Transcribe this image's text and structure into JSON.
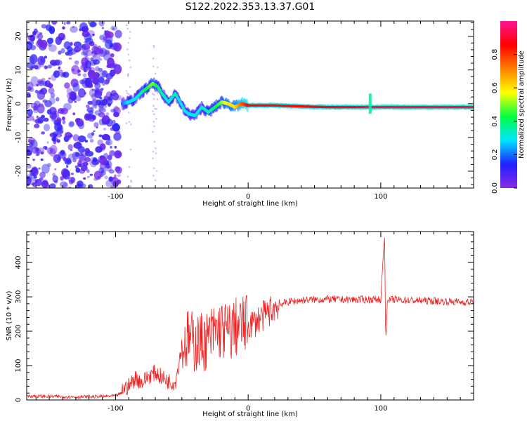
{
  "title": "S122.2022.353.13.37.G01",
  "chart_data": [
    {
      "type": "heatmap",
      "xlabel": "Height of straight line (km)",
      "ylabel": "Frequency (Hz)",
      "xlim": [
        -167,
        170
      ],
      "ylim": [
        -25,
        24.5
      ],
      "xticks": [
        -100,
        0,
        100
      ],
      "yticks": [
        -20,
        -10,
        0,
        10,
        20
      ],
      "colorbar": {
        "label": "Normalized spectral amplitude",
        "range": [
          0,
          1
        ],
        "ticks": [
          0.0,
          0.2,
          0.4,
          0.6,
          0.8
        ],
        "colormap": [
          "#8a2be2",
          "#1f1fff",
          "#00e5ff",
          "#00ff40",
          "#ffff00",
          "#ff7f00",
          "#ff0000",
          "#ff1493"
        ]
      },
      "ridge": {
        "x": [
          -95,
          -90,
          -85,
          -80,
          -75,
          -72,
          -68,
          -65,
          -60,
          -55,
          -52,
          -48,
          -45,
          -40,
          -35,
          -30,
          -25,
          -20,
          -15,
          -10,
          -5,
          0,
          10,
          20,
          40,
          60,
          80,
          90,
          95,
          100,
          120,
          140,
          170
        ],
        "y": [
          0,
          0.5,
          1.5,
          3.5,
          5,
          6,
          5,
          3,
          0.5,
          3,
          1,
          -2,
          -3,
          -3.5,
          -1,
          -2.5,
          -1,
          0.5,
          0,
          -1,
          0,
          -0.5,
          -0.5,
          -0.5,
          -0.8,
          -1,
          -1,
          -1,
          -1,
          -1,
          -1,
          -1,
          -1
        ],
        "amplitude": [
          0.2,
          0.3,
          0.3,
          0.35,
          0.45,
          0.5,
          0.4,
          0.35,
          0.3,
          0.35,
          0.3,
          0.3,
          0.3,
          0.3,
          0.3,
          0.35,
          0.4,
          0.5,
          0.6,
          0.6,
          0.75,
          0.85,
          0.85,
          0.85,
          0.85,
          0.9,
          0.9,
          0.95,
          0.95,
          0.95,
          0.95,
          0.95,
          0.95
        ]
      },
      "noise_region_x": [
        -167,
        -97
      ]
    },
    {
      "type": "line",
      "xlabel": "Height of straight line (km)",
      "ylabel": "SNR (10 * v/v)",
      "xlim": [
        -167,
        170
      ],
      "ylim": [
        0,
        490
      ],
      "xticks": [
        -100,
        0,
        100
      ],
      "yticks": [
        0,
        100,
        200,
        300,
        400
      ],
      "color": "#ee2222",
      "series": [
        {
          "x": [
            -167,
            -150,
            -130,
            -110,
            -100,
            -95,
            -90,
            -85,
            -80,
            -75,
            -70,
            -65,
            -60,
            -55,
            -50,
            -45,
            -40,
            -35,
            -30,
            -25,
            -20,
            -15,
            -10,
            -5,
            0,
            5,
            10,
            15,
            20,
            25,
            30,
            40,
            50,
            60,
            70,
            80,
            90,
            95,
            100,
            102,
            103,
            103.5,
            104,
            105,
            110,
            120,
            140,
            160,
            170
          ],
          "y": [
            12,
            10,
            9,
            10,
            12,
            20,
            30,
            55,
            40,
            60,
            70,
            55,
            45,
            40,
            150,
            180,
            165,
            170,
            175,
            200,
            205,
            195,
            210,
            215,
            220,
            225,
            240,
            255,
            270,
            280,
            285,
            290,
            292,
            293,
            292,
            292,
            292,
            293,
            292,
            430,
            480,
            220,
            180,
            290,
            292,
            290,
            288,
            285,
            285
          ]
        }
      ]
    }
  ]
}
